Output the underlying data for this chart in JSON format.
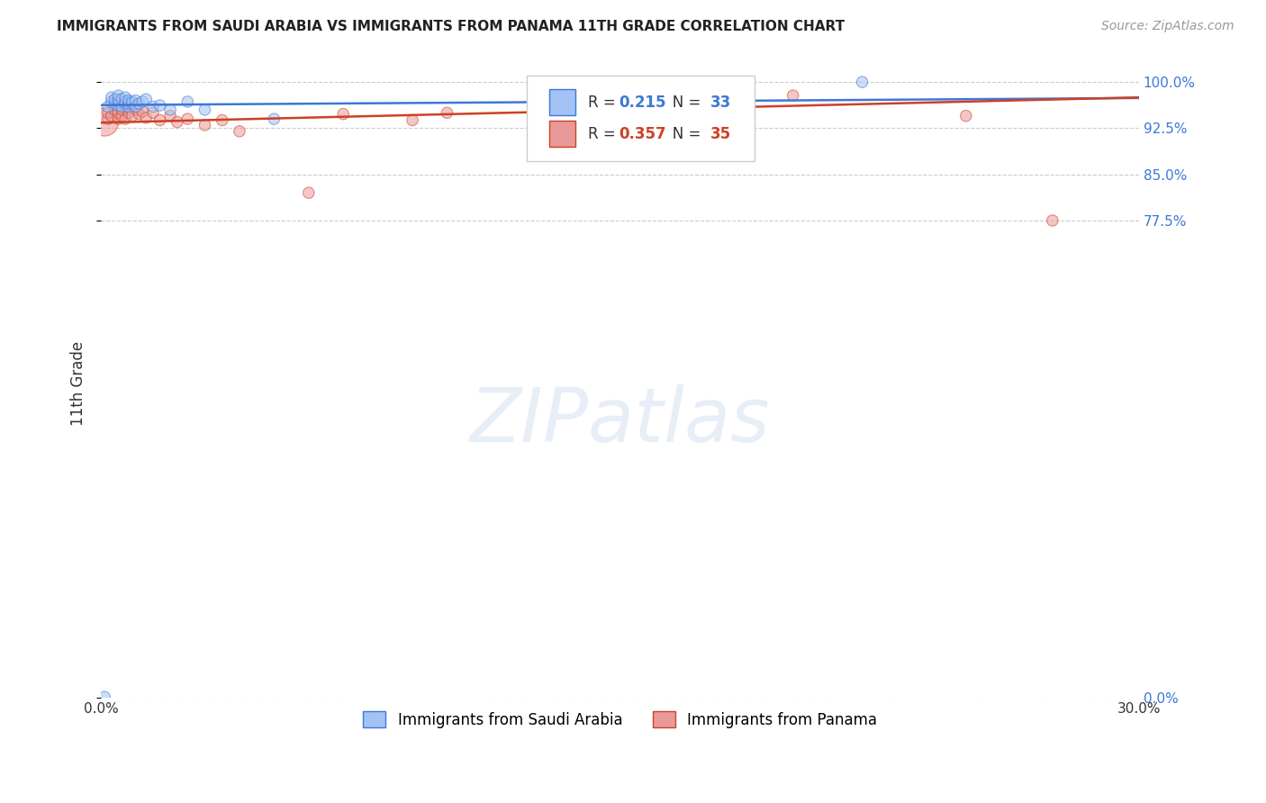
{
  "title": "IMMIGRANTS FROM SAUDI ARABIA VS IMMIGRANTS FROM PANAMA 11TH GRADE CORRELATION CHART",
  "source": "Source: ZipAtlas.com",
  "ylabel": "11th Grade",
  "legend_entry1": "Immigrants from Saudi Arabia",
  "legend_entry2": "Immigrants from Panama",
  "R_saudi": 0.215,
  "N_saudi": 33,
  "R_panama": 0.357,
  "N_panama": 35,
  "color_saudi": "#a4c2f4",
  "color_panama": "#ea9999",
  "trendline_color_saudi": "#3c78d8",
  "trendline_color_panama": "#cc4125",
  "saudi_x": [
    0.001,
    0.002,
    0.003,
    0.003,
    0.004,
    0.004,
    0.005,
    0.005,
    0.005,
    0.005,
    0.006,
    0.006,
    0.007,
    0.007,
    0.007,
    0.008,
    0.008,
    0.008,
    0.009,
    0.009,
    0.01,
    0.01,
    0.011,
    0.012,
    0.013,
    0.015,
    0.017,
    0.02,
    0.025,
    0.03,
    0.05,
    0.14,
    0.22
  ],
  "saudi_y": [
    0.001,
    0.96,
    0.968,
    0.975,
    0.965,
    0.972,
    0.962,
    0.968,
    0.972,
    0.978,
    0.96,
    0.972,
    0.965,
    0.968,
    0.975,
    0.96,
    0.965,
    0.97,
    0.965,
    0.968,
    0.96,
    0.97,
    0.965,
    0.968,
    0.972,
    0.96,
    0.962,
    0.955,
    0.968,
    0.955,
    0.94,
    0.965,
    1.0
  ],
  "saudi_sizes": [
    80,
    80,
    80,
    80,
    80,
    80,
    80,
    80,
    80,
    80,
    80,
    80,
    80,
    80,
    80,
    80,
    80,
    80,
    80,
    80,
    80,
    80,
    80,
    80,
    80,
    80,
    80,
    80,
    80,
    80,
    80,
    80,
    80
  ],
  "panama_x": [
    0.001,
    0.002,
    0.002,
    0.003,
    0.004,
    0.005,
    0.005,
    0.006,
    0.006,
    0.007,
    0.007,
    0.008,
    0.009,
    0.01,
    0.011,
    0.012,
    0.013,
    0.015,
    0.017,
    0.02,
    0.022,
    0.025,
    0.03,
    0.035,
    0.04,
    0.06,
    0.07,
    0.09,
    0.1,
    0.13,
    0.15,
    0.17,
    0.2,
    0.25,
    0.275
  ],
  "panama_y": [
    0.935,
    0.94,
    0.95,
    0.945,
    0.955,
    0.94,
    0.95,
    0.945,
    0.955,
    0.94,
    0.96,
    0.95,
    0.945,
    0.955,
    0.948,
    0.952,
    0.942,
    0.95,
    0.938,
    0.945,
    0.935,
    0.94,
    0.93,
    0.938,
    0.92,
    0.82,
    0.948,
    0.938,
    0.95,
    0.96,
    0.97,
    0.955,
    0.978,
    0.945,
    0.775
  ],
  "panama_sizes": [
    500,
    80,
    80,
    80,
    80,
    80,
    80,
    80,
    80,
    80,
    80,
    80,
    80,
    80,
    80,
    80,
    80,
    80,
    80,
    80,
    80,
    80,
    80,
    80,
    80,
    80,
    80,
    80,
    80,
    80,
    80,
    80,
    80,
    80,
    80
  ],
  "xlim": [
    0.0,
    0.3
  ],
  "ylim": [
    0.0,
    1.02
  ],
  "ytick_values": [
    0.0,
    0.775,
    0.85,
    0.925,
    1.0
  ],
  "ytick_labels": [
    "0.0%",
    "77.5%",
    "85.0%",
    "92.5%",
    "100.0%"
  ],
  "xtick_values": [
    0.0,
    0.05,
    0.1,
    0.15,
    0.2,
    0.25,
    0.3
  ],
  "xtick_labels": [
    "0.0%",
    "",
    "",
    "",
    "",
    "",
    "30.0%"
  ],
  "background_color": "#ffffff",
  "grid_color": "#cccccc",
  "right_axis_color": "#3c78d8",
  "title_fontsize": 11,
  "source_fontsize": 10,
  "axis_label_fontsize": 12,
  "tick_fontsize": 11
}
